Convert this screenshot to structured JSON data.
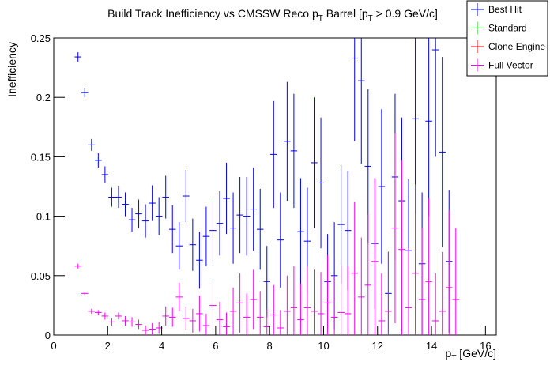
{
  "chart_data": {
    "type": "errorbar",
    "title": [
      {
        "text": "Build Track Inefficiency vs CMSSW Reco p"
      },
      {
        "text": "T",
        "sub": true
      },
      {
        "text": " Barrel [p"
      },
      {
        "text": "T",
        "sub": true
      },
      {
        "text": " > 0.9 GeV/c]"
      }
    ],
    "xlabel": [
      {
        "text": "p"
      },
      {
        "text": "T",
        "sub": true
      },
      {
        "text": " [GeV/c]"
      }
    ],
    "ylabel": "Inefficiency",
    "xlim": [
      0,
      16.4
    ],
    "ylim": [
      0,
      0.25
    ],
    "xticks": [
      0,
      2,
      4,
      6,
      8,
      10,
      12,
      14,
      16
    ],
    "yticks": [
      0,
      0.05,
      0.1,
      0.15,
      0.2,
      0.25
    ],
    "legend": "top-right",
    "xerr": 0.125,
    "x": [
      0.9,
      1.15,
      1.4,
      1.65,
      1.9,
      2.15,
      2.4,
      2.65,
      2.9,
      3.15,
      3.4,
      3.65,
      3.9,
      4.15,
      4.4,
      4.65,
      4.9,
      5.15,
      5.4,
      5.65,
      5.9,
      6.15,
      6.4,
      6.65,
      6.9,
      7.15,
      7.4,
      7.65,
      7.9,
      8.15,
      8.4,
      8.65,
      8.9,
      9.15,
      9.4,
      9.65,
      9.9,
      10.15,
      10.4,
      10.65,
      10.9,
      11.15,
      11.4,
      11.65,
      11.9,
      12.15,
      12.4,
      12.65,
      12.9,
      13.15,
      13.4,
      13.65,
      13.9,
      14.15,
      14.4,
      14.65,
      14.9
    ],
    "series": [
      {
        "name": "Best Hit",
        "color": "#0000ff",
        "values": [
          0.234,
          0.204,
          0.16,
          0.147,
          0.135,
          0.116,
          0.116,
          0.11,
          0.097,
          0.102,
          0.096,
          0.111,
          0.1,
          0.116,
          0.089,
          0.075,
          0.117,
          0.076,
          0.063,
          0.083,
          0.088,
          0.094,
          0.115,
          0.09,
          0.101,
          0.1,
          0.106,
          0.089,
          0.045,
          0.152,
          0.08,
          0.163,
          0.155,
          0.087,
          0.079,
          0.145,
          0.128,
          0.045,
          0.05,
          0.093,
          0.088,
          0.233,
          0.214,
          0.142,
          0.077,
          0.125,
          0.035,
          0.133,
          0.113,
          0.071,
          0.182,
          0.06,
          0.18,
          0.24,
          0.154,
          0.062,
          null
        ],
        "errors": [
          0.004,
          0.004,
          0.005,
          0.006,
          0.007,
          0.008,
          0.009,
          0.01,
          0.01,
          0.012,
          0.014,
          0.015,
          0.016,
          0.018,
          0.02,
          0.02,
          0.022,
          0.022,
          0.024,
          0.025,
          0.026,
          0.027,
          0.03,
          0.03,
          0.032,
          0.033,
          0.035,
          0.034,
          0.03,
          0.045,
          0.04,
          0.05,
          0.048,
          0.045,
          0.045,
          0.055,
          0.055,
          0.04,
          0.045,
          0.05,
          0.05,
          0.07,
          0.07,
          0.065,
          0.055,
          0.065,
          0.035,
          0.07,
          0.07,
          0.06,
          0.08,
          0.06,
          0.08,
          0.09,
          0.08,
          0.06,
          null
        ]
      },
      {
        "name": "Standard",
        "color": "#00cc00",
        "values": [
          null,
          null,
          null,
          null,
          null,
          null,
          null,
          null,
          null,
          null,
          null,
          null,
          null,
          null,
          null,
          null,
          null,
          null,
          null,
          null,
          null,
          null,
          null,
          null,
          null,
          null,
          null,
          null,
          null,
          null,
          null,
          null,
          null,
          null,
          null,
          null,
          null,
          null,
          null,
          null,
          null,
          null,
          null,
          null,
          null,
          null,
          null,
          null,
          null,
          null,
          null,
          null,
          null,
          null,
          null,
          null,
          null
        ]
      },
      {
        "name": "Clone Engine",
        "color": "#ff0000",
        "values": [
          null,
          null,
          null,
          null,
          null,
          null,
          null,
          null,
          null,
          null,
          null,
          null,
          null,
          null,
          null,
          null,
          null,
          null,
          null,
          null,
          null,
          null,
          null,
          null,
          null,
          null,
          null,
          null,
          null,
          null,
          null,
          null,
          null,
          null,
          null,
          null,
          null,
          null,
          null,
          null,
          null,
          null,
          null,
          null,
          null,
          null,
          null,
          null,
          null,
          null,
          null,
          null,
          null,
          null,
          null,
          null,
          null
        ]
      },
      {
        "name": "Full Vector",
        "color": "#ff00ff",
        "values": [
          0.058,
          0.035,
          0.02,
          0.019,
          0.016,
          0.011,
          0.016,
          0.012,
          0.011,
          0.009,
          0.004,
          0.005,
          0.006,
          0.016,
          0.015,
          0.032,
          0.014,
          0.012,
          0.018,
          0.008,
          0.025,
          0.013,
          0.007,
          0.02,
          0.027,
          0.015,
          0.03,
          0.015,
          0.007,
          0.017,
          0.006,
          0.02,
          0.023,
          0.013,
          0.023,
          0.02,
          0.018,
          0.027,
          0.015,
          0.019,
          0.018,
          0.052,
          0.032,
          0.042,
          0.062,
          0.012,
          0.02,
          0.09,
          0.072,
          0.023,
          0.052,
          0.03,
          0.045,
          0.012,
          0.02,
          0.04,
          0.03
        ],
        "errors": [
          0.002,
          0.0015,
          0.002,
          0.002,
          0.003,
          0.003,
          0.003,
          0.004,
          0.004,
          0.004,
          0.004,
          0.005,
          0.005,
          0.008,
          0.008,
          0.012,
          0.01,
          0.01,
          0.015,
          0.01,
          0.02,
          0.015,
          0.012,
          0.02,
          0.025,
          0.02,
          0.025,
          0.022,
          0.015,
          0.025,
          0.015,
          0.03,
          0.035,
          0.03,
          0.035,
          0.035,
          0.035,
          0.04,
          0.035,
          0.04,
          0.04,
          0.06,
          0.05,
          0.06,
          0.07,
          0.04,
          0.05,
          0.08,
          0.075,
          0.05,
          0.075,
          0.06,
          0.07,
          0.04,
          0.05,
          0.065,
          0.06
        ]
      }
    ]
  }
}
